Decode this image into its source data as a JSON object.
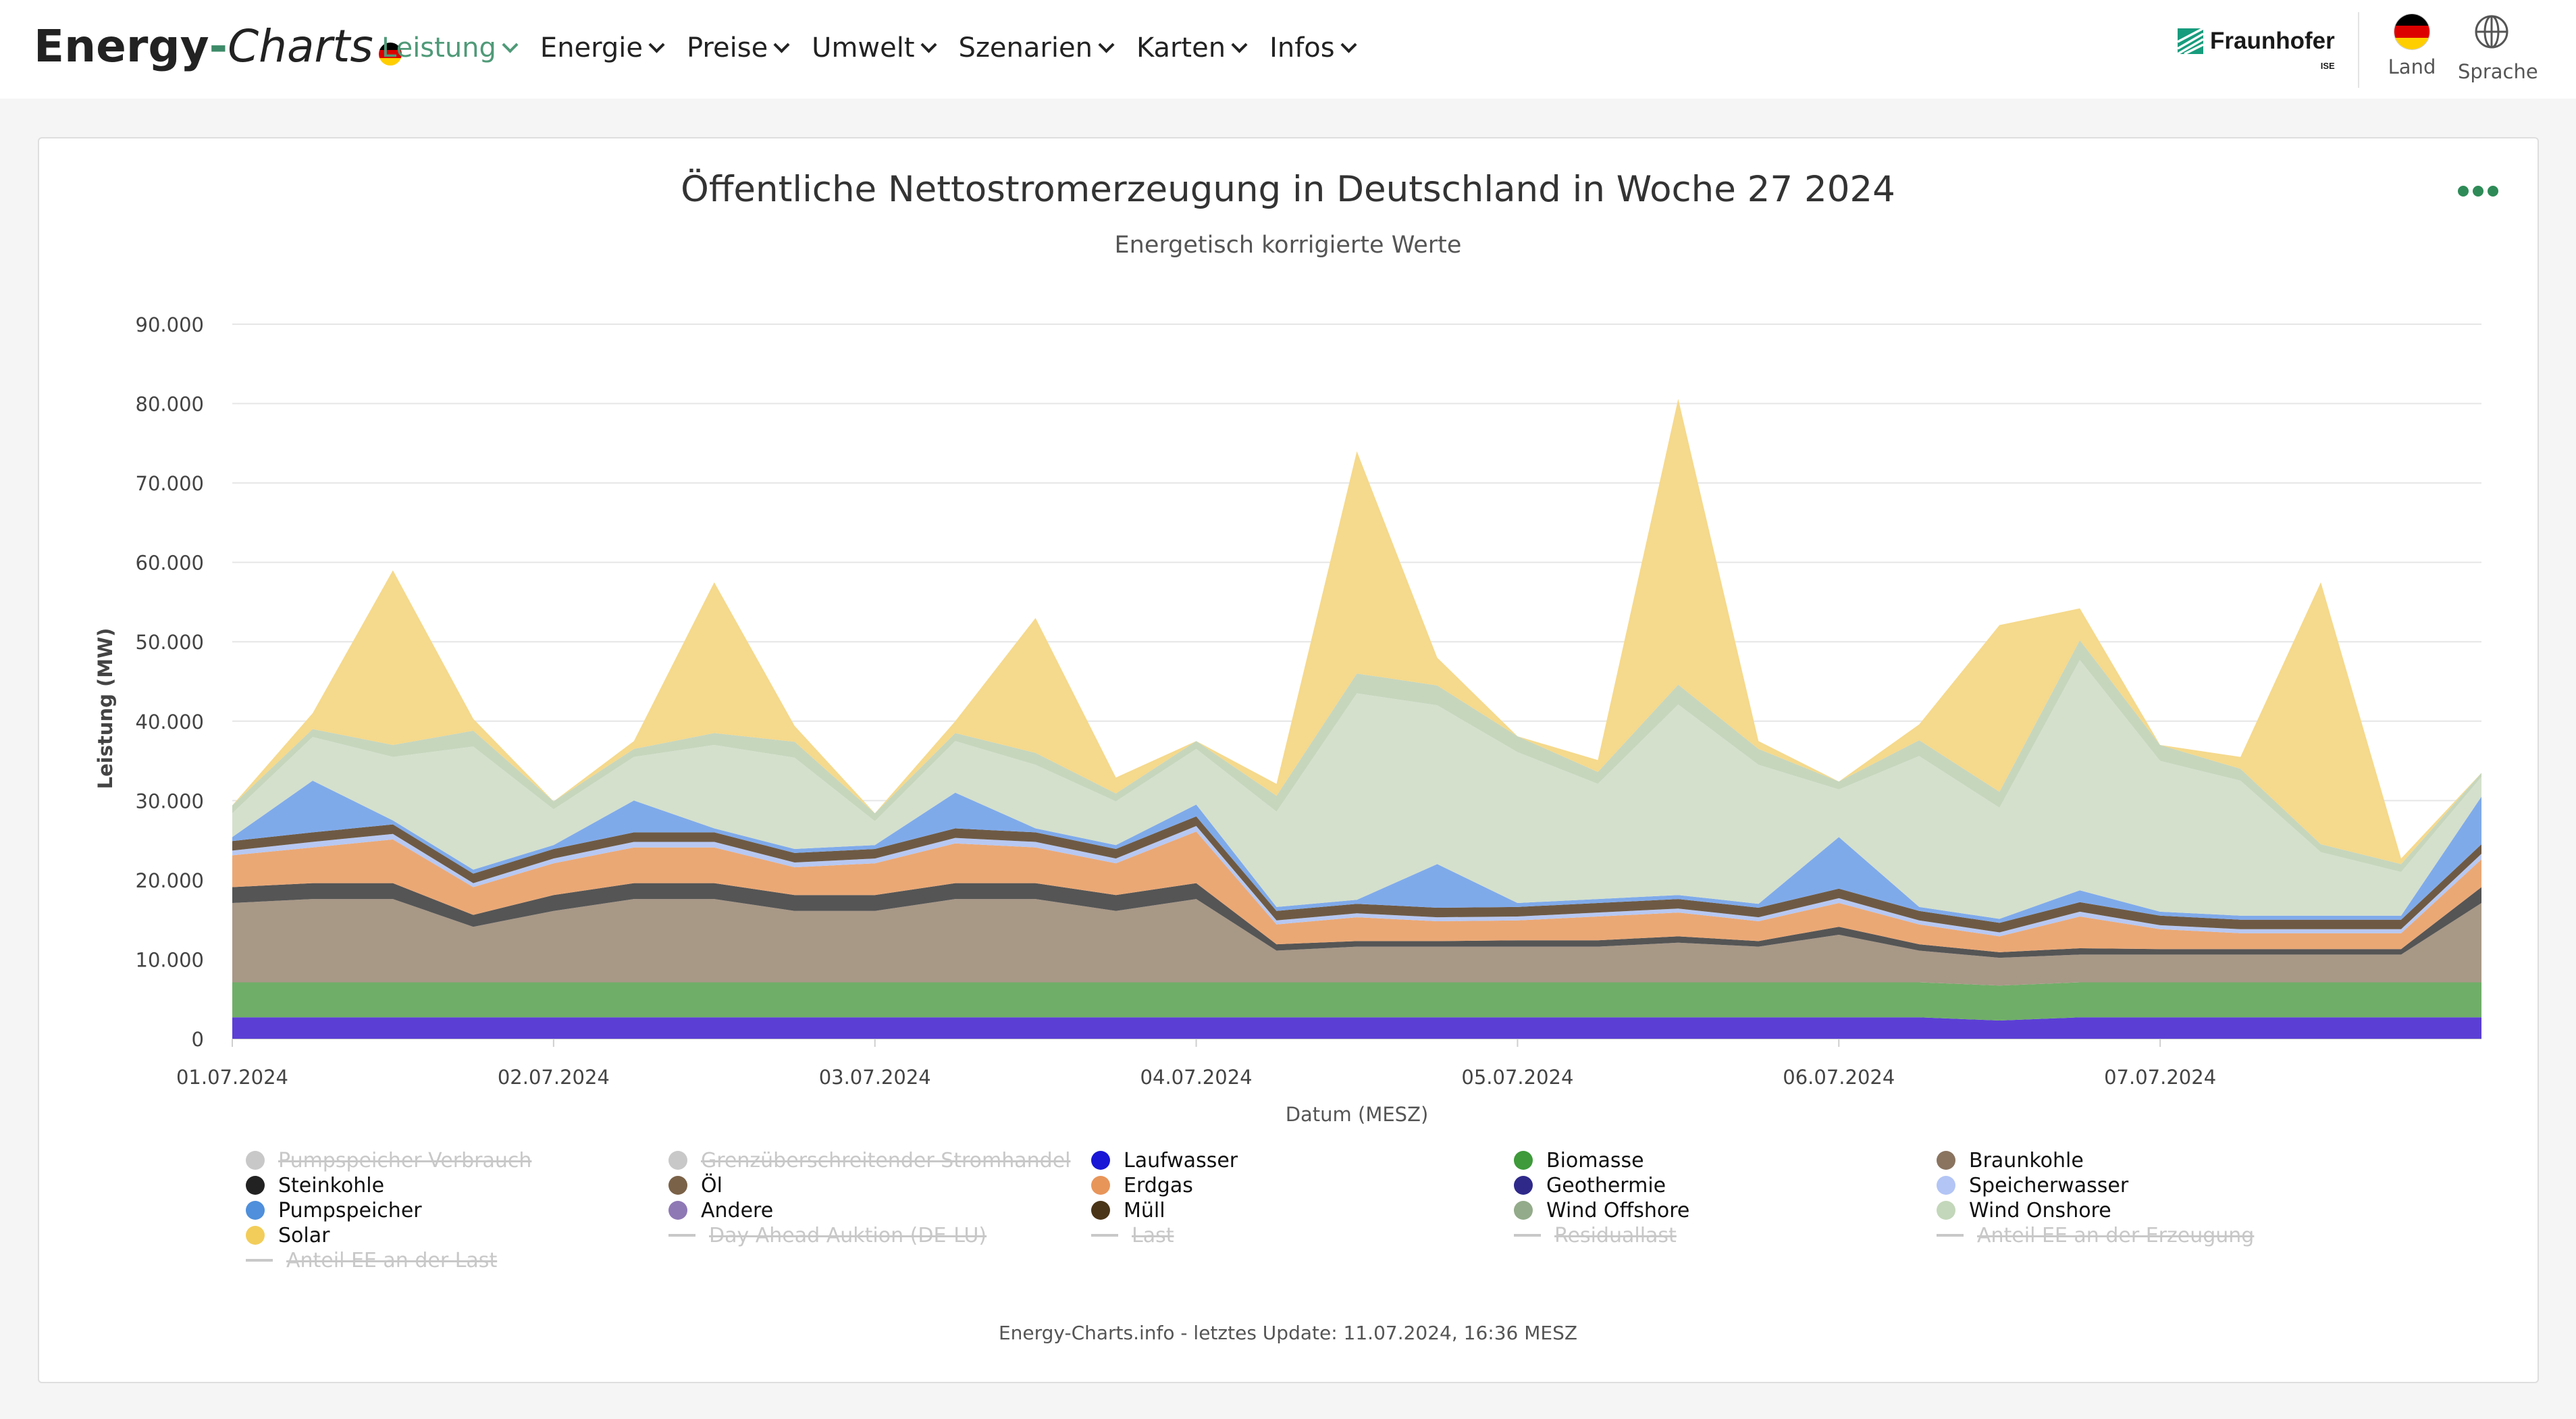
{
  "header": {
    "brand_part1": "Energy",
    "brand_dash": "-",
    "brand_part2": "Charts",
    "nav": [
      {
        "label": "Leistung",
        "active": true
      },
      {
        "label": "Energie",
        "active": false
      },
      {
        "label": "Preise",
        "active": false
      },
      {
        "label": "Umwelt",
        "active": false
      },
      {
        "label": "Szenarien",
        "active": false
      },
      {
        "label": "Karten",
        "active": false
      },
      {
        "label": "Infos",
        "active": false
      }
    ],
    "partner_name": "Fraunhofer",
    "partner_sub": "ISE",
    "land_label": "Land",
    "sprache_label": "Sprache"
  },
  "footer": {
    "note": "Energy-Charts.info - letztes Update: 11.07.2024, 16:36 MESZ"
  },
  "chart_data": {
    "type": "area",
    "stacked": true,
    "title": "Öffentliche Nettostromerzeugung in Deutschland in Woche 27 2024",
    "subtitle": "Energetisch korrigierte Werte",
    "xlabel": "Datum (MESZ)",
    "ylabel": "Leistung (MW)",
    "ylim": [
      0,
      90000
    ],
    "yticks": [
      "0",
      "10.000",
      "20.000",
      "30.000",
      "40.000",
      "50.000",
      "60.000",
      "70.000",
      "80.000",
      "90.000"
    ],
    "xticks": [
      "01.07.2024",
      "02.07.2024",
      "03.07.2024",
      "04.07.2024",
      "05.07.2024",
      "06.07.2024",
      "07.07.2024"
    ],
    "grid": true,
    "legend_position": "bottom",
    "x": [
      "01.07. 00:00",
      "01.07. 06:00",
      "01.07. 12:00",
      "01.07. 18:00",
      "02.07. 00:00",
      "02.07. 06:00",
      "02.07. 12:00",
      "02.07. 18:00",
      "03.07. 00:00",
      "03.07. 06:00",
      "03.07. 12:00",
      "03.07. 18:00",
      "04.07. 00:00",
      "04.07. 06:00",
      "04.07. 12:00",
      "04.07. 18:00",
      "05.07. 00:00",
      "05.07. 06:00",
      "05.07. 12:00",
      "05.07. 18:00",
      "06.07. 00:00",
      "06.07. 06:00",
      "06.07. 12:00",
      "06.07. 18:00",
      "07.07. 00:00",
      "07.07. 06:00",
      "07.07. 12:00",
      "07.07. 18:00",
      "07.07. 24:00"
    ],
    "series": [
      {
        "name": "Laufwasser",
        "color": "#5b3fd4",
        "values": [
          2700,
          2700,
          2700,
          2700,
          2700,
          2700,
          2700,
          2700,
          2700,
          2700,
          2700,
          2700,
          2700,
          2700,
          2700,
          2700,
          2700,
          2700,
          2700,
          2700,
          2700,
          2700,
          2300,
          2700,
          2700,
          2700,
          2700,
          2700,
          2700
        ]
      },
      {
        "name": "Biomasse",
        "color": "#6fae68",
        "values": [
          4400,
          4400,
          4400,
          4400,
          4400,
          4400,
          4400,
          4400,
          4400,
          4400,
          4400,
          4400,
          4400,
          4400,
          4400,
          4400,
          4400,
          4400,
          4400,
          4400,
          4400,
          4400,
          4400,
          4400,
          4400,
          4400,
          4400,
          4400,
          4400
        ]
      },
      {
        "name": "Braunkohle",
        "color": "#a89886",
        "values": [
          10000,
          10500,
          10500,
          7000,
          9000,
          10500,
          10500,
          9000,
          9000,
          10500,
          10500,
          9000,
          10500,
          4000,
          4500,
          4500,
          4500,
          4500,
          5000,
          4500,
          6000,
          4000,
          3500,
          3500,
          3500,
          3500,
          3500,
          3500,
          10000
        ]
      },
      {
        "name": "Steinkohle",
        "color": "#555555",
        "values": [
          2000,
          2000,
          2000,
          1500,
          2000,
          2000,
          2000,
          2000,
          2000,
          2000,
          2000,
          2000,
          2000,
          800,
          700,
          700,
          800,
          800,
          800,
          700,
          1000,
          800,
          700,
          800,
          700,
          700,
          700,
          700,
          2000
        ]
      },
      {
        "name": "Erdgas",
        "color": "#eaa875",
        "values": [
          4000,
          4500,
          5500,
          3500,
          4000,
          4500,
          4500,
          3500,
          4000,
          5000,
          4500,
          4000,
          6500,
          2500,
          3000,
          2500,
          2500,
          3000,
          3000,
          2500,
          3000,
          2500,
          2000,
          4000,
          2500,
          2000,
          2000,
          2000,
          3500
        ]
      },
      {
        "name": "Speicherwasser",
        "color": "#b7c8f2",
        "values": [
          600,
          700,
          700,
          500,
          600,
          700,
          700,
          600,
          600,
          700,
          700,
          600,
          700,
          500,
          500,
          500,
          500,
          500,
          500,
          500,
          600,
          500,
          500,
          600,
          500,
          500,
          500,
          500,
          700
        ]
      },
      {
        "name": "Müll",
        "color": "#6e5a44",
        "values": [
          1200,
          1200,
          1200,
          1200,
          1200,
          1200,
          1200,
          1200,
          1200,
          1200,
          1200,
          1200,
          1200,
          1200,
          1200,
          1200,
          1200,
          1200,
          1200,
          1200,
          1200,
          1200,
          1200,
          1200,
          1200,
          1200,
          1200,
          1200,
          1200
        ]
      },
      {
        "name": "Pumpspeicher",
        "color": "#7faaea",
        "values": [
          500,
          6500,
          500,
          500,
          500,
          4000,
          500,
          500,
          500,
          4500,
          500,
          500,
          1500,
          500,
          500,
          5500,
          500,
          500,
          500,
          500,
          6500,
          500,
          500,
          1500,
          500,
          500,
          500,
          500,
          6000
        ]
      },
      {
        "name": "Wind Onshore",
        "color": "#d4e0cc",
        "values": [
          3000,
          5500,
          8000,
          15500,
          4500,
          5500,
          10500,
          11500,
          3000,
          6500,
          8000,
          5500,
          7000,
          12000,
          26000,
          20000,
          19000,
          14500,
          24000,
          17500,
          6000,
          19000,
          14000,
          29000,
          19000,
          17000,
          8000,
          5500,
          2500
        ]
      },
      {
        "name": "Wind Offshore",
        "color": "#c6d6bd",
        "values": [
          1000,
          1000,
          1500,
          2000,
          1000,
          1000,
          1500,
          2000,
          1000,
          1000,
          1500,
          1000,
          1000,
          2000,
          2500,
          2500,
          2000,
          1500,
          2500,
          2000,
          1000,
          2000,
          2000,
          2500,
          2000,
          1500,
          1000,
          1000,
          500
        ]
      },
      {
        "name": "Solar",
        "color": "#f5d98c",
        "values": [
          0,
          2000,
          22000,
          1500,
          0,
          1000,
          19000,
          2000,
          0,
          1500,
          17000,
          2000,
          0,
          1500,
          28000,
          3500,
          0,
          1500,
          36000,
          1000,
          0,
          2000,
          21000,
          4000,
          0,
          1500,
          33000,
          700,
          0
        ]
      }
    ],
    "legend": [
      {
        "label": "Pumpspeicher Verbrauch",
        "color": "#c8c8c8",
        "kind": "dot",
        "hidden": true
      },
      {
        "label": "Grenzüberschreitender Stromhandel",
        "color": "#c8c8c8",
        "kind": "dot",
        "hidden": true
      },
      {
        "label": "Laufwasser",
        "color": "#1a17d6",
        "kind": "dot",
        "hidden": false
      },
      {
        "label": "Biomasse",
        "color": "#3e9a3a",
        "kind": "dot",
        "hidden": false
      },
      {
        "label": "Braunkohle",
        "color": "#8a7460",
        "kind": "dot",
        "hidden": false
      },
      {
        "label": "Steinkohle",
        "color": "#222222",
        "kind": "dot",
        "hidden": false
      },
      {
        "label": "Öl",
        "color": "#7a6248",
        "kind": "dot",
        "hidden": false
      },
      {
        "label": "Erdgas",
        "color": "#e8955a",
        "kind": "dot",
        "hidden": false
      },
      {
        "label": "Geothermie",
        "color": "#2f2a8a",
        "kind": "dot",
        "hidden": false
      },
      {
        "label": "Speicherwasser",
        "color": "#b3c5f5",
        "kind": "dot",
        "hidden": false
      },
      {
        "label": "Pumpspeicher",
        "color": "#4f8fdb",
        "kind": "dot",
        "hidden": false
      },
      {
        "label": "Andere",
        "color": "#8f79b5",
        "kind": "dot",
        "hidden": false
      },
      {
        "label": "Müll",
        "color": "#4a3518",
        "kind": "dot",
        "hidden": false
      },
      {
        "label": "Wind Offshore",
        "color": "#93ab8a",
        "kind": "dot",
        "hidden": false
      },
      {
        "label": "Wind Onshore",
        "color": "#c3d7ba",
        "kind": "dot",
        "hidden": false
      },
      {
        "label": "Solar",
        "color": "#f2cd5a",
        "kind": "dot",
        "hidden": false
      },
      {
        "label": "Day Ahead Auktion (DE-LU)",
        "color": "#c8c8c8",
        "kind": "line",
        "hidden": true
      },
      {
        "label": "Last",
        "color": "#c8c8c8",
        "kind": "line",
        "hidden": true
      },
      {
        "label": "Residuallast",
        "color": "#c8c8c8",
        "kind": "line",
        "hidden": true
      },
      {
        "label": "Anteil EE an der Erzeugung",
        "color": "#c8c8c8",
        "kind": "line",
        "hidden": true
      },
      {
        "label": "Anteil EE an der Last",
        "color": "#c8c8c8",
        "kind": "line",
        "hidden": true
      }
    ]
  }
}
